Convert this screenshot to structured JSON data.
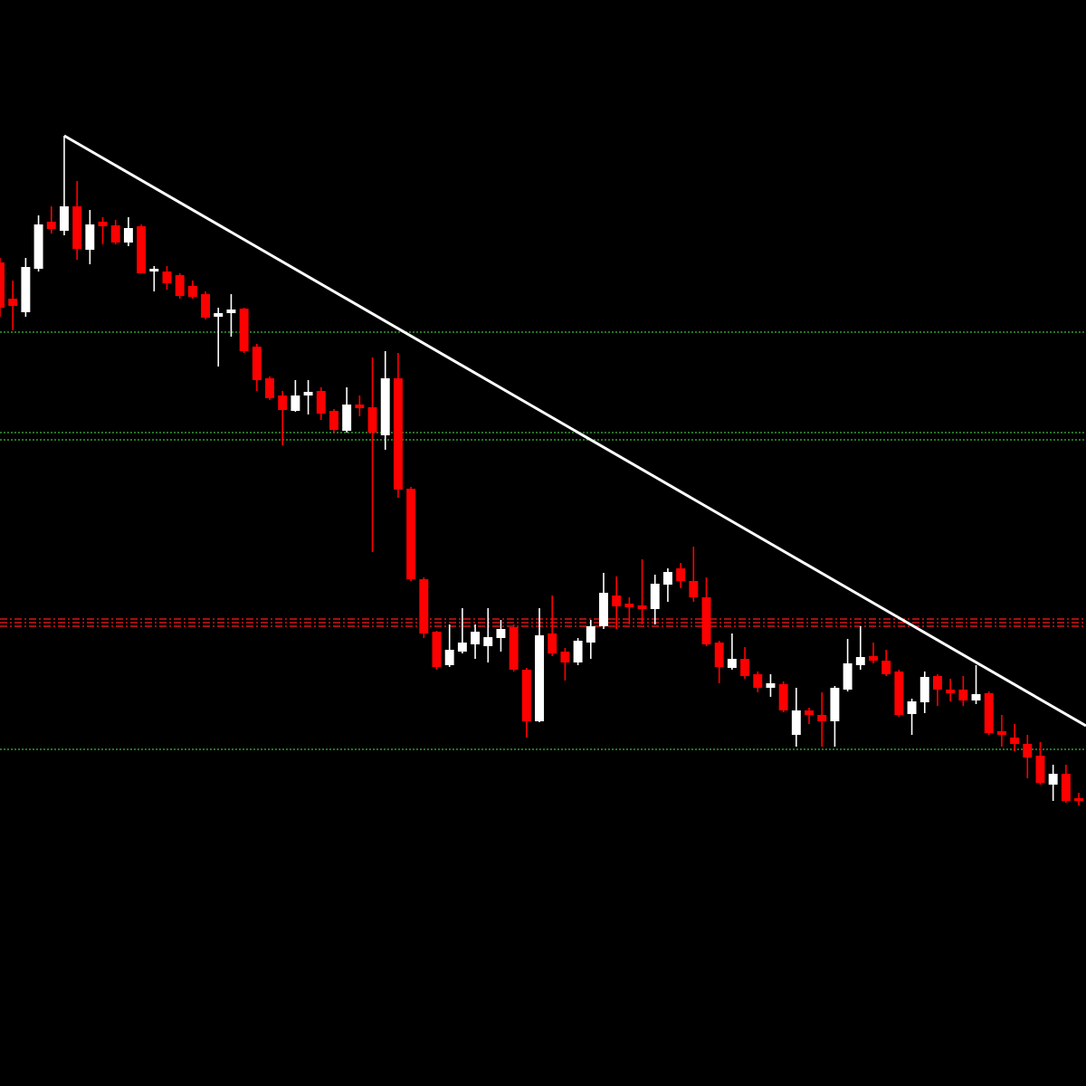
{
  "chart_data": {
    "type": "candlestick",
    "up_color": "#ffffff",
    "down_color": "#ff0000",
    "xlim": [
      0,
      84.56
    ],
    "ylim": [
      0,
      1200
    ],
    "open": [
      910,
      870,
      855,
      903,
      955,
      945,
      972,
      924,
      955,
      951,
      932,
      950,
      900,
      900,
      896,
      884,
      875,
      850,
      854,
      859,
      817,
      782,
      763,
      746,
      763,
      768,
      746,
      724,
      753,
      750,
      719,
      782,
      660,
      560,
      502,
      465,
      480,
      488,
      486,
      495,
      507,
      460,
      403,
      500,
      480,
      468,
      490,
      508,
      542,
      533,
      531,
      527,
      554,
      572,
      558,
      540,
      490,
      462,
      472,
      455,
      440,
      444,
      388,
      415,
      410,
      403,
      438,
      465,
      475,
      470,
      458,
      411,
      424,
      453,
      438,
      438,
      426,
      434,
      392,
      385,
      378,
      365,
      333,
      345,
      318
    ],
    "high": [
      915,
      890,
      915,
      962,
      972,
      1050,
      1000,
      968,
      960,
      957,
      960,
      952,
      906,
      906,
      898,
      890,
      878,
      860,
      875,
      860,
      820,
      784,
      768,
      780,
      780,
      772,
      748,
      772,
      763,
      805,
      812,
      810,
      662,
      562,
      503,
      510,
      528,
      510,
      528,
      515,
      510,
      462,
      528,
      542,
      484,
      495,
      515,
      567,
      563,
      540,
      582,
      565,
      572,
      578,
      596,
      562,
      492,
      500,
      485,
      458,
      455,
      447,
      440,
      418,
      435,
      442,
      494,
      508,
      490,
      482,
      460,
      428,
      458,
      455,
      450,
      453,
      465,
      436,
      410,
      400,
      388,
      380,
      355,
      355,
      324
    ],
    "low": [
      850,
      835,
      850,
      900,
      942,
      940,
      913,
      908,
      930,
      930,
      928,
      898,
      878,
      880,
      870,
      870,
      847,
      795,
      828,
      810,
      768,
      758,
      708,
      745,
      742,
      736,
      722,
      722,
      740,
      590,
      703,
      650,
      558,
      495,
      460,
      463,
      478,
      472,
      468,
      480,
      458,
      385,
      402,
      475,
      448,
      465,
      472,
      505,
      505,
      510,
      510,
      510,
      535,
      550,
      535,
      486,
      445,
      460,
      450,
      435,
      430,
      413,
      375,
      400,
      375,
      375,
      436,
      460,
      467,
      453,
      408,
      388,
      412,
      420,
      425,
      420,
      422,
      388,
      375,
      370,
      340,
      333,
      315,
      313,
      310
    ],
    "close": [
      860,
      862,
      905,
      952,
      947,
      972,
      925,
      952,
      950,
      932,
      948,
      898,
      903,
      887,
      873,
      872,
      849,
      854,
      858,
      812,
      780,
      760,
      747,
      763,
      767,
      743,
      725,
      753,
      749,
      722,
      782,
      659,
      560,
      500,
      463,
      482,
      490,
      502,
      496,
      505,
      460,
      403,
      498,
      478,
      468,
      492,
      508,
      545,
      530,
      529,
      527,
      555,
      568,
      558,
      540,
      488,
      463,
      472,
      453,
      440,
      445,
      415,
      415,
      410,
      403,
      440,
      467,
      474,
      470,
      455,
      410,
      425,
      452,
      438,
      434,
      426,
      433,
      390,
      388,
      378,
      363,
      335,
      345,
      315,
      315
    ],
    "levels": [
      {
        "value": 833,
        "color": "#3cb83c",
        "style": "dotted"
      },
      {
        "value": 722,
        "color": "#3cb83c",
        "style": "dotted"
      },
      {
        "value": 714,
        "color": "#3cb83c",
        "style": "dotted"
      },
      {
        "value": 372,
        "color": "#3cb83c",
        "style": "dotted"
      },
      {
        "value": 516,
        "color": "#ff1a1a",
        "style": "dashdot"
      },
      {
        "value": 512,
        "color": "#ff1a1a",
        "style": "dashdot"
      },
      {
        "value": 508,
        "color": "#ff1a1a",
        "style": "dashdot"
      }
    ],
    "trendline": {
      "x": [
        5,
        84.56
      ],
      "y": [
        1050,
        398
      ],
      "color": "#ffffff"
    }
  }
}
